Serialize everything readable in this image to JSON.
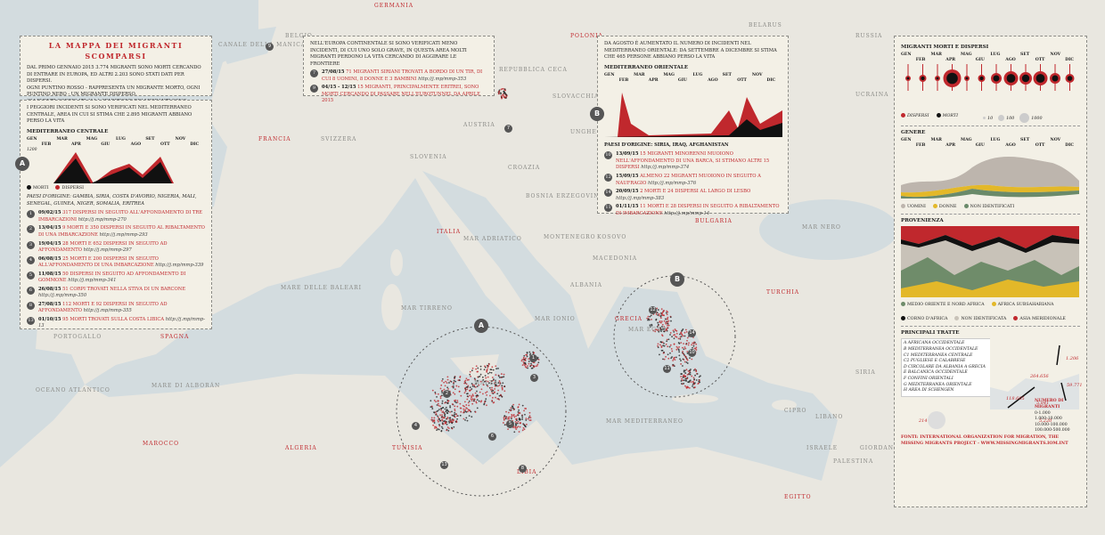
{
  "map_labels": [
    "GERMANIA",
    "POLONIA",
    "BELARUS",
    "RUSSIA",
    "UCRAINA",
    "BELGIO",
    "CANALE DELLA MANICA",
    "FRANCIA",
    "SVIZZERA",
    "AUSTRIA",
    "UNGHERIA",
    "ROMANIA",
    "MOLDAVIA",
    "SLOVENIA",
    "CROAZIA",
    "BOSNIA ERZEGOVINA",
    "SERBIA",
    "ITALIA",
    "MAR ADRIATICO",
    "MONTENEGRO",
    "KOSOVO",
    "BULGARIA",
    "MACEDONIA",
    "ALBANIA",
    "MAR NERO",
    "GRECIA",
    "TURCHIA",
    "MAR EGEO",
    "MAR IONIO",
    "MAR TIRRENO",
    "MARE DELLE BALEARI",
    "SPAGNA",
    "PORTOGALLO",
    "OCEANO ATLANTICO",
    "MARE DI ALBORÁN",
    "MAROCCO",
    "ALGERIA",
    "TUNISIA",
    "LIBIA",
    "MALTA",
    "MAR MEDITERRANEO",
    "CIPRO",
    "SIRIA",
    "LIBANO",
    "ISRAELE",
    "PALESTINA",
    "GIORDANIA",
    "EGITTO",
    "REPUBBLICA CECA",
    "SLOVACCHIA",
    "GEORGIA"
  ],
  "months": [
    "GEN",
    "FEB",
    "MAR",
    "APR",
    "MAG",
    "GIU",
    "LUG",
    "AGO",
    "SET",
    "OTT",
    "NOV",
    "DIC"
  ],
  "title_panel": {
    "title": "LA MAPPA DEI MIGRANTI SCOMPARSI",
    "text": [
      "DAL PRIMO GENNAIO 2015 3.774 MIGRANTI SONO MORTI CERCANDO DI ENTRARE IN EUROPA, ED ALTRI 2.203 SONO STATI DATI PER DISPERSI.",
      "OGNI PUNTINO ROSSO - RAPPRESENTA UN MIGRANTE MORTO, OGNI PUNTINO NERO - UN MIGRANTE DISPERSO.",
      "GLI EVENTI CORRELATI ALLA SPARIZIONE DEI MIGRANTI SONO EVIDENZIATI CON IL SIMBOLO, I PIÙ GRAVI SONO RIPORTATI IN LEGENDA TRAMITE UN NUMERO"
    ]
  },
  "panel_a": {
    "marker": "A",
    "intro": "I PEGGIORI INCIDENTI SI SONO VERIFICATI NEL MEDITERRANEO CENTRALE, AREA IN CUI SI STIMA CHE 2.895 MIGRANTI ABBIANO PERSO LA VITA",
    "chart_title": "MEDITERRANEO CENTRALE",
    "axis_label": "1200",
    "legend": [
      "MORTI",
      "DISPERSI"
    ],
    "origin": "PAESI D'ORIGINE: GAMBIA, SIRIA, COSTA D'AVORIO, NIGERIA, MALI, SENEGAL, GUINEA, NIGER, SOMALIA, ERITREA",
    "incidents": [
      {
        "number": "1",
        "date": "09/02/15",
        "text": "317 DISPERSI IN SEGUITO ALL'AFFONDAMENTO DI TRE IMBARCAZIONI",
        "link": "http://j.mp/mmp-270"
      },
      {
        "number": "2",
        "date": "13/04/15",
        "text": "9 MORTI E 350 DISPERSI IN SEGUITO AL RIBALTAMENTO DI UNA IMBARCAZIONE",
        "link": "http://j.mp/mmp-293"
      },
      {
        "number": "3",
        "date": "19/04/15",
        "text": "28 MORTI E 652 DISPERSI IN SEGUITO AD AFFONDAMENTO",
        "link": "http://j.mp/mmp-297"
      },
      {
        "number": "4",
        "date": "06/08/15",
        "text": "25 MORTI E 200 DISPERSI IN SEGUITO ALL'AFFONDAMENTO DI UNA IMBARCAZIONE",
        "link": "http://j.mp/mmp-339"
      },
      {
        "number": "5",
        "date": "11/08/15",
        "text": "50 DISPERSI IN SEGUITO AD AFFONDAMENTO DI GOMMONE",
        "link": "http://j.mp/mmp-341"
      },
      {
        "number": "6",
        "date": "26/08/15",
        "text": "51 CORPI TROVATI NELLA STIVA DI UN BARCONE",
        "link": "http://j.mp/mmp-350"
      },
      {
        "number": "8",
        "date": "27/08/15",
        "text": "112 MORTI E 92 DISPERSI IN SEGUITO AD AFFONDAMENTO",
        "link": "http://j.mp/mmp-355"
      },
      {
        "number": "13",
        "date": "01/10/15",
        "text": "95 MORTI TROVATI SULLA COSTA LIBICA",
        "link": "http://j.mp/mmp-13"
      }
    ]
  },
  "panel_europe": {
    "intro": "NELL'EUROPA CONTINENTALE SI SONO VERIFICATI MENO INCIDENTI, DI CUI UNO SOLO GRAVE, IN QUESTA AREA MOLTI MIGRANTI PERDONO LA VITA CERCANDO DI AGGIRARE LE FRONTIERE",
    "incidents": [
      {
        "number": "7",
        "date": "27/08/15",
        "text": "71 MIGRANTI SIRIANI TROVATI A BORDO DI UN TIR, DI CUI 8 UOMINI, 8 DONNE E 3 BAMBINI",
        "link": "http://j.mp/mmp-353"
      },
      {
        "number": "9",
        "date": "04/15 - 12/15",
        "text": "15 MIGRANTI, PRINCIPALMENTE ERITREI, SONO MORTI CERCANDO DI PASSARE NELL'EUROTUNNEL DA APRILE 2015",
        "link": ""
      }
    ]
  },
  "panel_b": {
    "marker": "B",
    "intro": "DA AGOSTO È AUMENTATO IL NUMERO DI INCIDENTI NEL MEDITERRANEO ORIENTALE: DA SETTEMBRE A DICEMBRE SI STIMA CHE 465 PERSONE ABBIANO PERSO LA VITA",
    "chart_title": "MEDITERRANEO ORIENTALE",
    "origin": "PAESI D'ORIGINE: SIRIA, IRAQ, AFGHANISTAN",
    "incidents": [
      {
        "number": "10",
        "date": "13/09/15",
        "text": "15 MIGRANTI MINORENNI MUOIONO NELL'AFFONDAMENTO DI UNA BARCA, SI STIMANO ALTRI 15 DISPERSI",
        "link": "http://j.mp/mmp-374"
      },
      {
        "number": "12",
        "date": "15/09/15",
        "text": "ALMENO 22 MIGRANTI MUOIONO IN SEGUITO A NAUFRAGIO",
        "link": "http://j.mp/mmp-376"
      },
      {
        "number": "14",
        "date": "20/09/15",
        "text": "2 MORTI E 24 DISPERSI AL LARGO DI LESBO",
        "link": "http://j.mp/mmp-383"
      },
      {
        "number": "11",
        "date": "01/11/15",
        "text": "11 MORTI E 28 DISPERSI IN SEGUITO A RIBALTAMENTO DI IMBARCAZIONE",
        "link": "http://j.mp/mmp-14"
      }
    ]
  },
  "sidebar": {
    "dead_title": "MIGRANTI MORTI E DISPERSI",
    "dead_legend": [
      "Dispersi",
      "Morti"
    ],
    "size_legend": [
      "10",
      "100",
      "1000"
    ],
    "gender_title": "GENERE",
    "gender_legend": [
      "UOMINI",
      "DONNE",
      "NON IDENTIFICATI"
    ],
    "origin_title": "PROVENIENZA",
    "origin_legend": [
      "MEDIO ORIENTE E NORD AFRICA",
      "AFRICA SUBSAHARIANA",
      "CORNO D'AFRICA",
      "NON IDENTIFICATA",
      "ASIA MERIDIONALE"
    ],
    "routes_title": "PRINCIPALI TRATTE",
    "routes": [
      "A AFRICANA OCCIDENTALE",
      "B MEDITERRANEA OCCIDENTALE",
      "C1 MEDITERRANEA CENTRALE",
      "C2 PUGLIESE E CALABRESE",
      "D CIRCOLARE DA ALBANIA A GRECIA",
      "E BALCANICA OCCIDENTALE",
      "F CONFINI ORIENTALI",
      "G MEDITERRANEA ORIENTALE",
      "H AREA DI SCHENGEN"
    ],
    "route_numbers": [
      "1.206",
      "264.656",
      "59.771",
      "118.605",
      "5.841",
      "5.220",
      "214"
    ],
    "count_title": "NUMERO DI MIGRANTI",
    "count_legend": [
      "0-1.000",
      "1.000-10.000",
      "10.000-100.000",
      "100.000-500.000"
    ],
    "source": "FONTI: INTERNATIONAL ORGANIZATION FOR MIGRATION, THE MISSING MIGRANTS PROJECT - WWW.MISSINGMIGRANTS.IOM.INT"
  }
}
